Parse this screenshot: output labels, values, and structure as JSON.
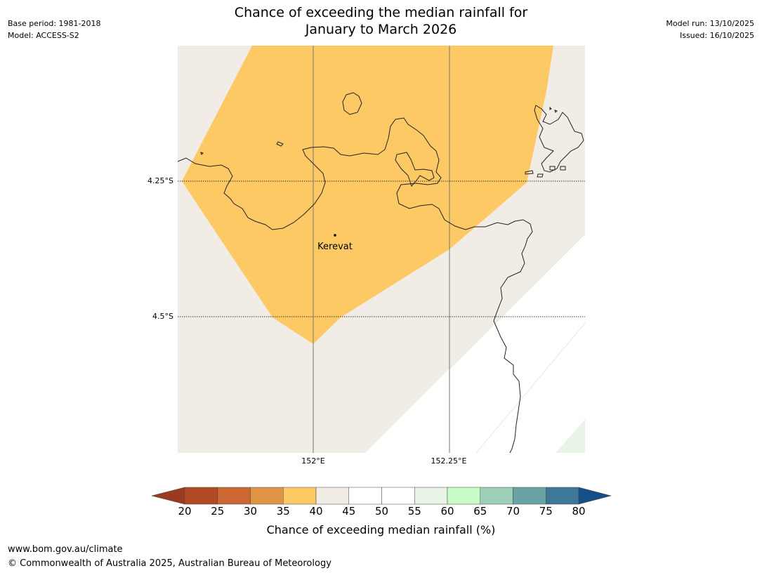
{
  "header": {
    "title_line1": "Chance of exceeding the median rainfall for",
    "title_line2": "January to March 2026",
    "base_period": "Base period: 1981-2018",
    "model": "Model: ACCESS-S2",
    "model_run": "Model run: 13/10/2025",
    "issued": "Issued: 16/10/2025"
  },
  "map": {
    "place_label": "Kerevat",
    "lat_labels": [
      "4.25°S",
      "4.5°S"
    ],
    "lon_labels": [
      "152°E",
      "152.25°E"
    ]
  },
  "colorbar": {
    "label": "Chance of exceeding median rainfall (%)",
    "ticks": [
      "20",
      "25",
      "30",
      "35",
      "40",
      "45",
      "50",
      "55",
      "60",
      "65",
      "70",
      "75",
      "80"
    ],
    "colors": {
      "below_20": "#9a3a22",
      "c20_25": "#b34a26",
      "c25_30": "#cc6633",
      "c30_35": "#e09444",
      "c35_40": "#fdc965",
      "c40_45": "#f1ece6",
      "c45_50": "#ffffff",
      "c50_55": "#ffffff",
      "c55_60": "#e8f5e6",
      "c60_65": "#c8fcc8",
      "c65_70": "#9dcfb8",
      "c70_75": "#6aa3a4",
      "c75_80": "#3d7898",
      "above_80": "#174e85"
    }
  },
  "footer": {
    "website": "www.bom.gov.au/climate",
    "copyright": "© Commonwealth of Australia 2025, Australian Bureau of Meteorology"
  }
}
